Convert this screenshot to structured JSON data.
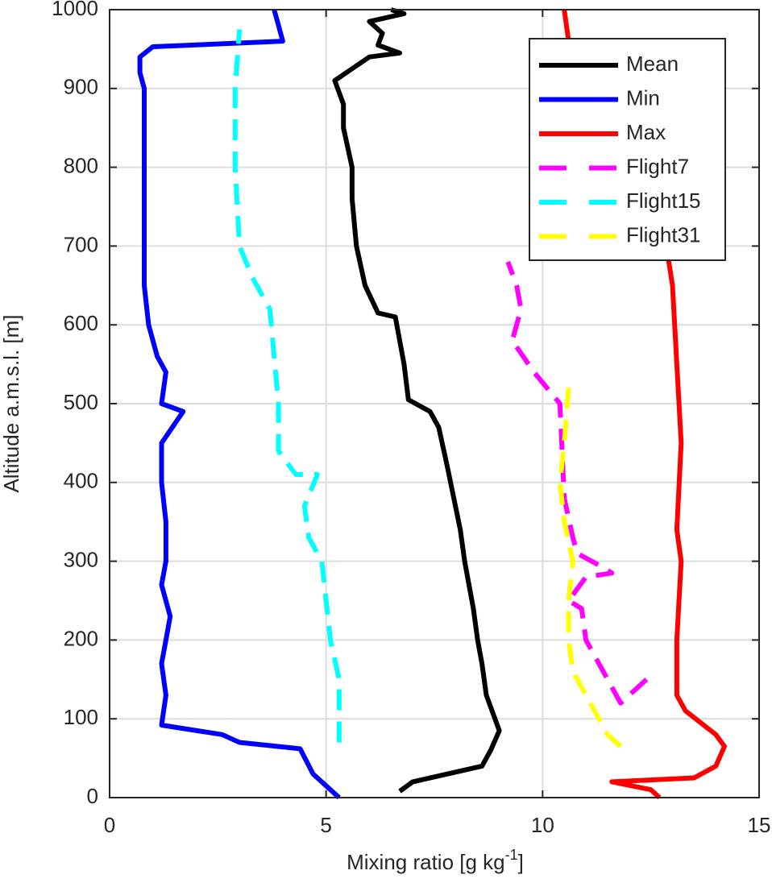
{
  "chart_data": {
    "type": "line",
    "xlabel": {
      "text": "Mixing ratio [g kg",
      "superscript": "-1",
      "suffix": "]"
    },
    "ylabel": "Altitude a.m.s.l. [m]",
    "xlim": [
      0,
      15
    ],
    "xticks": [
      0,
      5,
      10,
      15
    ],
    "ylim": [
      0,
      1000
    ],
    "yticks": [
      0,
      100,
      200,
      300,
      400,
      500,
      600,
      700,
      800,
      900,
      1000
    ],
    "grid": true,
    "legend": "top-right",
    "series": [
      {
        "name": "Mean",
        "color": "#000000",
        "dash": "solid",
        "x": [
          6.7,
          7.0,
          8.6,
          8.8,
          9.0,
          8.7,
          8.6,
          8.5,
          8.4,
          8.2,
          8.1,
          7.8,
          7.6,
          7.4,
          6.9,
          6.8,
          6.6,
          6.2,
          5.9,
          5.7,
          5.6,
          5.6,
          5.4,
          5.4,
          5.2,
          5.6,
          6.0,
          6.7,
          6.2,
          6.3,
          6.0,
          6.8,
          6.5
        ],
        "y": [
          8,
          20,
          40,
          60,
          85,
          130,
          170,
          200,
          240,
          300,
          340,
          420,
          470,
          490,
          505,
          550,
          610,
          615,
          650,
          700,
          760,
          800,
          850,
          880,
          910,
          925,
          940,
          945,
          955,
          970,
          985,
          995,
          1000
        ]
      },
      {
        "name": "Min",
        "color": "#0000ff",
        "dash": "solid",
        "x": [
          5.3,
          4.7,
          4.4,
          3.0,
          2.6,
          1.2,
          1.3,
          1.2,
          1.3,
          1.4,
          1.2,
          1.3,
          1.3,
          1.2,
          1.2,
          1.7,
          1.2,
          1.3,
          1.1,
          0.9,
          0.8,
          0.8,
          0.8,
          0.8,
          0.7,
          0.7,
          1.0,
          4.0,
          3.9,
          3.8
        ],
        "y": [
          0,
          30,
          62,
          70,
          80,
          92,
          130,
          170,
          200,
          230,
          270,
          300,
          350,
          400,
          450,
          490,
          500,
          540,
          560,
          600,
          650,
          700,
          800,
          900,
          920,
          940,
          953,
          960,
          980,
          1000
        ]
      },
      {
        "name": "Max",
        "color": "#ff0000",
        "dash": "solid",
        "x": [
          12.7,
          12.5,
          11.6,
          13.5,
          14.0,
          14.2,
          14.0,
          13.3,
          13.1,
          13.1,
          13.2,
          13.1,
          13.2,
          13.1,
          13.0,
          12.8,
          12.1,
          11.4,
          10.9,
          10.6,
          10.5
        ],
        "y": [
          0,
          10,
          20,
          25,
          40,
          65,
          80,
          110,
          130,
          200,
          300,
          340,
          450,
          550,
          650,
          720,
          790,
          850,
          920,
          960,
          1000
        ]
      },
      {
        "name": "Flight7",
        "color": "#ff00ff",
        "dash": "dashed",
        "x": [
          12.4,
          11.8,
          11.4,
          11.0,
          10.9,
          10.6,
          11.0,
          11.6,
          11.3,
          10.8,
          10.7,
          10.5,
          10.4,
          9.8,
          9.3,
          9.5,
          9.4,
          9.2
        ],
        "y": [
          150,
          120,
          160,
          200,
          240,
          250,
          280,
          285,
          295,
          310,
          330,
          380,
          500,
          540,
          580,
          620,
          650,
          680
        ]
      },
      {
        "name": "Flight15",
        "color": "#00ffff",
        "dash": "dashed",
        "x": [
          5.3,
          5.3,
          5.3,
          5.1,
          5.0,
          4.9,
          4.6,
          4.5,
          4.8,
          4.3,
          3.9,
          3.9,
          3.8,
          3.7,
          3.3,
          3.0,
          2.9,
          2.9,
          3.0
        ],
        "y": [
          70,
          100,
          150,
          200,
          250,
          300,
          330,
          370,
          410,
          410,
          440,
          500,
          560,
          620,
          660,
          700,
          800,
          900,
          975
        ]
      },
      {
        "name": "Flight31",
        "color": "#ffff00",
        "dash": "dashed",
        "x": [
          11.8,
          11.5,
          11.1,
          10.7,
          10.6,
          10.6,
          10.7,
          10.5,
          10.4,
          10.5,
          10.6
        ],
        "y": [
          65,
          80,
          120,
          160,
          200,
          250,
          300,
          350,
          400,
          450,
          520
        ]
      }
    ]
  }
}
